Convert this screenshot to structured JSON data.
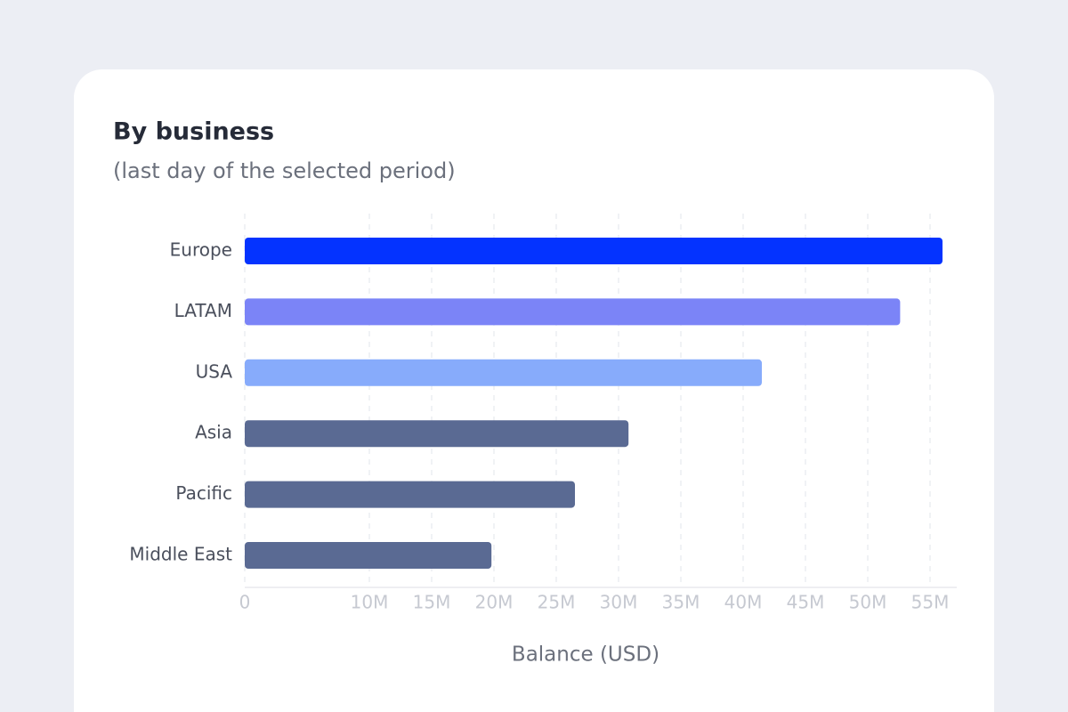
{
  "chart_data": {
    "type": "bar",
    "orientation": "horizontal",
    "title": "By business",
    "subtitle": "(last day of the selected period)",
    "x_label": "Balance (USD)",
    "categories": [
      "Europe",
      "LATAM",
      "USA",
      "Asia",
      "Pacific",
      "Middle East"
    ],
    "values": [
      56000000,
      52600000,
      41500000,
      30800000,
      26500000,
      19800000
    ],
    "colors": [
      "#0433ff",
      "#7b84f7",
      "#87abfb",
      "#5a6a93",
      "#5a6a93",
      "#5a6a93"
    ],
    "xlim": [
      0,
      57000000
    ],
    "xticks": [
      0,
      {
        "value": 10000000,
        "label": "10M"
      },
      {
        "value": 15000000,
        "label": "15M"
      },
      {
        "value": 20000000,
        "label": "20M"
      },
      {
        "value": 25000000,
        "label": "25M"
      },
      {
        "value": 30000000,
        "label": "30M"
      },
      {
        "value": 35000000,
        "label": "35M"
      },
      {
        "value": 40000000,
        "label": "40M"
      },
      {
        "value": 45000000,
        "label": "45M"
      },
      {
        "value": 50000000,
        "label": "50M"
      },
      {
        "value": 55000000,
        "label": "55M"
      }
    ],
    "grid": true
  }
}
